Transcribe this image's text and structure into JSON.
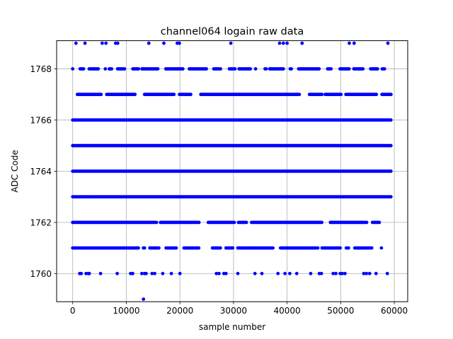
{
  "chart_data": {
    "type": "scatter",
    "title": "channel064 logain raw data",
    "xlabel": "sample number",
    "ylabel": "ADC Code",
    "xlim": [
      -3000,
      62500
    ],
    "ylim": [
      1758.9,
      1769.1
    ],
    "x_ticks": [
      0,
      10000,
      20000,
      30000,
      40000,
      50000,
      60000
    ],
    "x_tick_labels": [
      "0",
      "10000",
      "20000",
      "30000",
      "40000",
      "50000",
      "60000"
    ],
    "y_ticks": [
      1760,
      1762,
      1764,
      1766,
      1768
    ],
    "y_tick_labels": [
      "1760",
      "1762",
      "1764",
      "1766",
      "1768"
    ],
    "grid": true,
    "marker_color": "#0000ff",
    "x_range_of_samples": [
      0,
      59500
    ],
    "levels": [
      {
        "y": 1759,
        "density": "single",
        "x": [
          13200
        ]
      },
      {
        "y": 1760,
        "density": "sparse",
        "x": [
          1300,
          1600,
          2500,
          2900,
          3100,
          5200,
          8300,
          10800,
          11200,
          12900,
          13400,
          13700,
          14800,
          15300,
          16800,
          18400,
          20000,
          26800,
          27300,
          28200,
          28600,
          30800,
          34000,
          35300,
          38300,
          39600,
          40500,
          41800,
          44400,
          46000,
          46400,
          48600,
          49100,
          49900,
          50300,
          50800,
          54300,
          54800,
          55400,
          56600,
          58700
        ]
      },
      {
        "y": 1761,
        "density": "medium",
        "x_start": 0,
        "x_end": 59000
      },
      {
        "y": 1762,
        "density": "dense",
        "x_start": 0,
        "x_end": 59500
      },
      {
        "y": 1763,
        "density": "solid",
        "x_start": 0,
        "x_end": 59500
      },
      {
        "y": 1764,
        "density": "solid",
        "x_start": 0,
        "x_end": 59500
      },
      {
        "y": 1765,
        "density": "solid",
        "x_start": 0,
        "x_end": 59500
      },
      {
        "y": 1766,
        "density": "solid",
        "x_start": 0,
        "x_end": 59500
      },
      {
        "y": 1767,
        "density": "dense",
        "x_start": 0,
        "x_end": 59500
      },
      {
        "y": 1768,
        "density": "medium",
        "x_start": 0,
        "x_end": 59000
      },
      {
        "y": 1769,
        "density": "sparse",
        "x": [
          600,
          2300,
          5500,
          6200,
          8000,
          8400,
          14200,
          17000,
          19500,
          19900,
          29500,
          38600,
          39300,
          40000,
          42800,
          51600,
          52500,
          58800
        ]
      }
    ]
  }
}
